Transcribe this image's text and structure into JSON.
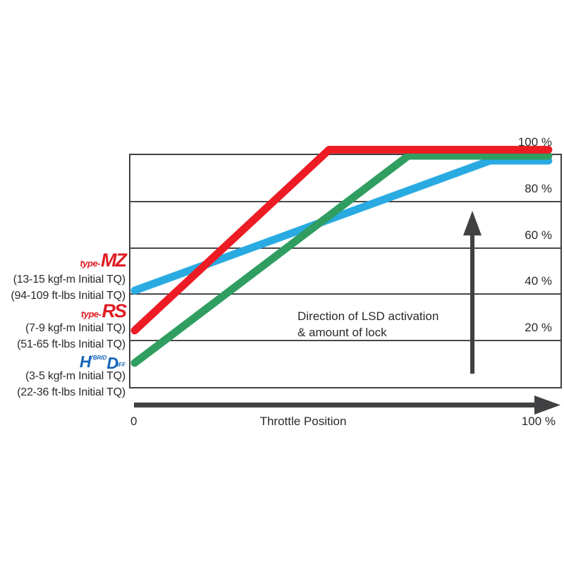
{
  "chart_data": {
    "type": "line",
    "title": "",
    "xlabel": "Throttle Position",
    "x_axis": {
      "min_label": "0",
      "max_label": "100 %",
      "title": "Throttle Position",
      "range": [
        0,
        100
      ]
    },
    "y_axis": {
      "range": [
        0,
        100
      ],
      "grid": true,
      "labels_position": "top-right",
      "ticks": [
        {
          "value": 100,
          "label": "100 %"
        },
        {
          "value": 80,
          "label": "80 %"
        },
        {
          "value": 60,
          "label": "60 %"
        },
        {
          "value": 40,
          "label": "40 %"
        },
        {
          "value": 20,
          "label": "20 %"
        }
      ]
    },
    "annotation": "Direction of LSD activation\n& amount of lock",
    "series": [
      {
        "id": "type-mz",
        "name": "type-MZ",
        "color": "#29abe2",
        "points": [
          [
            1,
            41.6
          ],
          [
            83.6,
            97.6
          ],
          [
            97.2,
            97.6
          ]
        ]
      },
      {
        "id": "hybrid-hd",
        "name": "Hybrid HD",
        "color": "#2f9e60",
        "points": [
          [
            1,
            10.4
          ],
          [
            64.6,
            99.7
          ],
          [
            97.2,
            99.7
          ]
        ]
      },
      {
        "id": "type-rs",
        "name": "type-RS",
        "color": "#ec1b24",
        "points": [
          [
            1,
            24.4
          ],
          [
            46.2,
            102.3
          ],
          [
            97.2,
            102.3
          ]
        ]
      }
    ],
    "legend": [
      {
        "series": "type-mz",
        "logo_prefix": "type-",
        "logo_main": "MZ",
        "logo_color": "#e01b22",
        "lines": [
          "(13-15 kgf-m Initial TQ)",
          "(94-109 ft-lbs Initial TQ)"
        ]
      },
      {
        "series": "type-rs",
        "logo_prefix": "type-",
        "logo_main": "RS",
        "logo_color": "#e01b22",
        "lines": [
          "(7-9 kgf-m Initial TQ)",
          "(51-65 ft-lbs Initial TQ)"
        ]
      },
      {
        "series": "hybrid-hd",
        "logo_color": "#1565b8",
        "logo_parts": {
          "h": "H",
          "ybrid": "YBRID",
          "d": "D",
          "iff": "IFF"
        },
        "lines": [
          "(3-5 kgf-m Initial TQ)",
          "(22-36 ft-lbs Initial TQ)"
        ]
      }
    ],
    "colors": {
      "axis": "#414042",
      "grid": "#48484a",
      "text": "#2a2a2c",
      "arrow": "#414042"
    }
  }
}
